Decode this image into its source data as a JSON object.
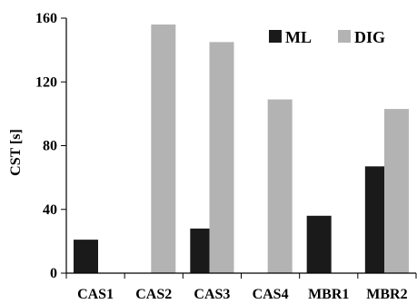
{
  "chart_data": {
    "type": "bar",
    "categories": [
      "CAS1",
      "CAS2",
      "CAS3",
      "CAS4",
      "MBR1",
      "MBR2"
    ],
    "series": [
      {
        "name": "ML",
        "values": [
          21,
          0,
          28,
          0,
          36,
          67
        ],
        "color": "#1a1a1a"
      },
      {
        "name": "DIG",
        "values": [
          0,
          156,
          145,
          109,
          0,
          103
        ],
        "color": "#b3b3b3"
      }
    ],
    "ylabel": "CST [s]",
    "xlabel": "",
    "ylim": [
      0,
      160
    ],
    "yticks": [
      0,
      40,
      80,
      120,
      160
    ],
    "grid": false,
    "legend": "top-right"
  }
}
